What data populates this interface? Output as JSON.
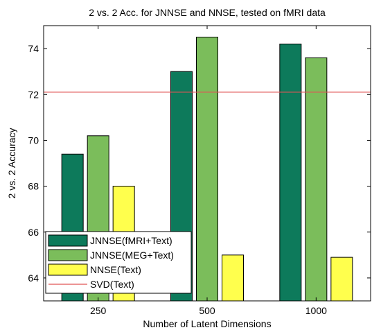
{
  "chart_data": {
    "type": "bar",
    "title": "2 vs. 2 Acc. for JNNSE and NNSE, tested on fMRI data",
    "xlabel": "Number of Latent Dimensions",
    "ylabel": "2 vs. 2 Accuracy",
    "categories": [
      "250",
      "500",
      "1000"
    ],
    "ylim": [
      63,
      75
    ],
    "yticks": [
      "64",
      "66",
      "68",
      "70",
      "72",
      "74"
    ],
    "series": [
      {
        "name": "JNNSE(fMRI+Text)",
        "color": "#0d7a5b",
        "values": [
          69.4,
          73.0,
          74.2
        ]
      },
      {
        "name": "JNNSE(MEG+Text)",
        "color": "#7bbd5b",
        "values": [
          70.2,
          74.5,
          73.6
        ]
      },
      {
        "name": "NNSE(Text)",
        "color": "#ffff4d",
        "values": [
          68.0,
          65.0,
          64.9
        ]
      }
    ],
    "reference_lines": [
      {
        "name": "SVD(Text)",
        "color": "#e05555",
        "value": 72.1
      }
    ],
    "legend_position": "bottom-left",
    "grid": false
  }
}
